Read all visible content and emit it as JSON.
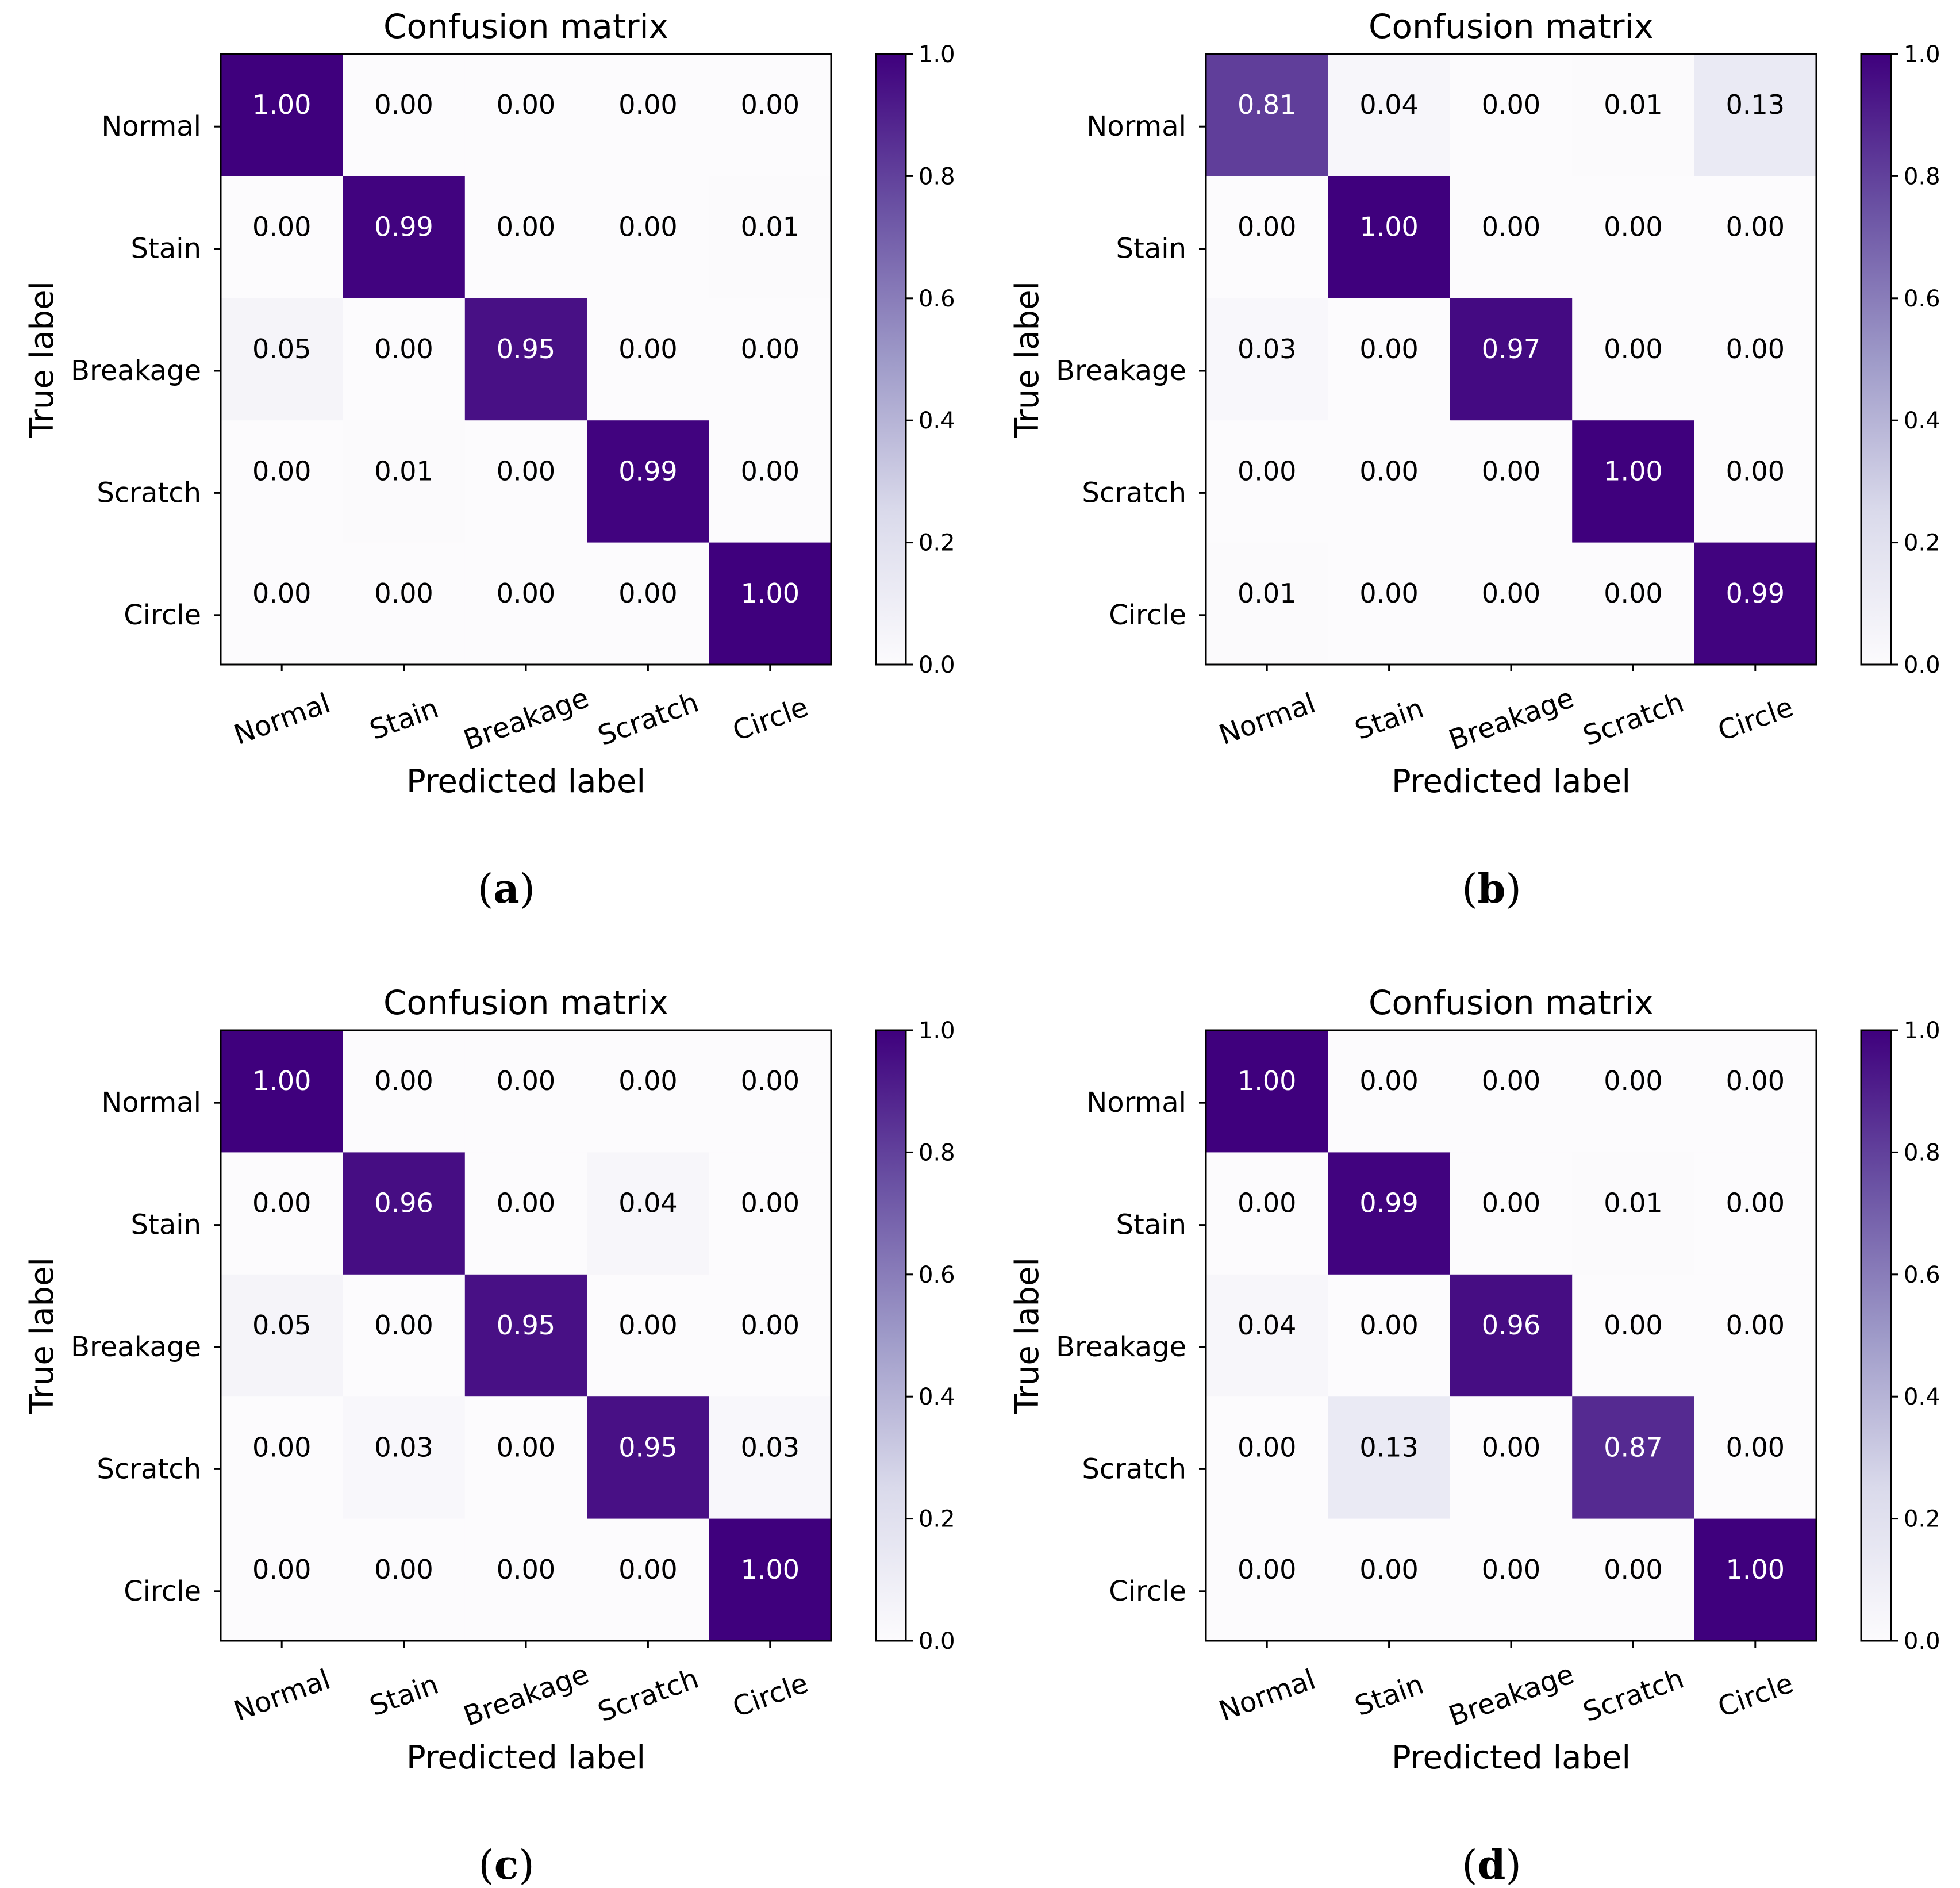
{
  "figure": {
    "colors": {
      "colormap": "Purples",
      "cmap_low": "#fcfbfd",
      "cmap_q1": "#dadaeb",
      "cmap_q2": "#9e9ac8",
      "cmap_q3": "#6a51a3",
      "cmap_high": "#3f007d",
      "text_dark": "#000000",
      "text_light": "#ffffff"
    }
  },
  "chart_data": [
    {
      "type": "heatmap",
      "panel_label": "a",
      "title": "Confusion matrix",
      "xlabel": "Predicted label",
      "ylabel": "True label",
      "categories": [
        "Normal",
        "Stain",
        "Breakage",
        "Scratch",
        "Circle"
      ],
      "values": [
        [
          1.0,
          0.0,
          0.0,
          0.0,
          0.0
        ],
        [
          0.0,
          0.99,
          0.0,
          0.0,
          0.01
        ],
        [
          0.05,
          0.0,
          0.95,
          0.0,
          0.0
        ],
        [
          0.0,
          0.01,
          0.0,
          0.99,
          0.0
        ],
        [
          0.0,
          0.0,
          0.0,
          0.0,
          1.0
        ]
      ],
      "colorbar": {
        "range": [
          0.0,
          1.0
        ],
        "ticks": [
          "0.0",
          "0.2",
          "0.4",
          "0.6",
          "0.8",
          "1.0"
        ]
      }
    },
    {
      "type": "heatmap",
      "panel_label": "b",
      "title": "Confusion matrix",
      "xlabel": "Predicted label",
      "ylabel": "True label",
      "categories": [
        "Normal",
        "Stain",
        "Breakage",
        "Scratch",
        "Circle"
      ],
      "values": [
        [
          0.81,
          0.04,
          0.0,
          0.01,
          0.13
        ],
        [
          0.0,
          1.0,
          0.0,
          0.0,
          0.0
        ],
        [
          0.03,
          0.0,
          0.97,
          0.0,
          0.0
        ],
        [
          0.0,
          0.0,
          0.0,
          1.0,
          0.0
        ],
        [
          0.01,
          0.0,
          0.0,
          0.0,
          0.99
        ]
      ],
      "colorbar": {
        "range": [
          0.0,
          1.0
        ],
        "ticks": [
          "0.0",
          "0.2",
          "0.4",
          "0.6",
          "0.8",
          "1.0"
        ]
      }
    },
    {
      "type": "heatmap",
      "panel_label": "c",
      "title": "Confusion matrix",
      "xlabel": "Predicted label",
      "ylabel": "True label",
      "categories": [
        "Normal",
        "Stain",
        "Breakage",
        "Scratch",
        "Circle"
      ],
      "values": [
        [
          1.0,
          0.0,
          0.0,
          0.0,
          0.0
        ],
        [
          0.0,
          0.96,
          0.0,
          0.04,
          0.0
        ],
        [
          0.05,
          0.0,
          0.95,
          0.0,
          0.0
        ],
        [
          0.0,
          0.03,
          0.0,
          0.95,
          0.03
        ],
        [
          0.0,
          0.0,
          0.0,
          0.0,
          1.0
        ]
      ],
      "colorbar": {
        "range": [
          0.0,
          1.0
        ],
        "ticks": [
          "0.0",
          "0.2",
          "0.4",
          "0.6",
          "0.8",
          "1.0"
        ]
      }
    },
    {
      "type": "heatmap",
      "panel_label": "d",
      "title": "Confusion matrix",
      "xlabel": "Predicted label",
      "ylabel": "True label",
      "categories": [
        "Normal",
        "Stain",
        "Breakage",
        "Scratch",
        "Circle"
      ],
      "values": [
        [
          1.0,
          0.0,
          0.0,
          0.0,
          0.0
        ],
        [
          0.0,
          0.99,
          0.0,
          0.01,
          0.0
        ],
        [
          0.04,
          0.0,
          0.96,
          0.0,
          0.0
        ],
        [
          0.0,
          0.13,
          0.0,
          0.87,
          0.0
        ],
        [
          0.0,
          0.0,
          0.0,
          0.0,
          1.0
        ]
      ],
      "colorbar": {
        "range": [
          0.0,
          1.0
        ],
        "ticks": [
          "0.0",
          "0.2",
          "0.4",
          "0.6",
          "0.8",
          "1.0"
        ]
      }
    }
  ]
}
